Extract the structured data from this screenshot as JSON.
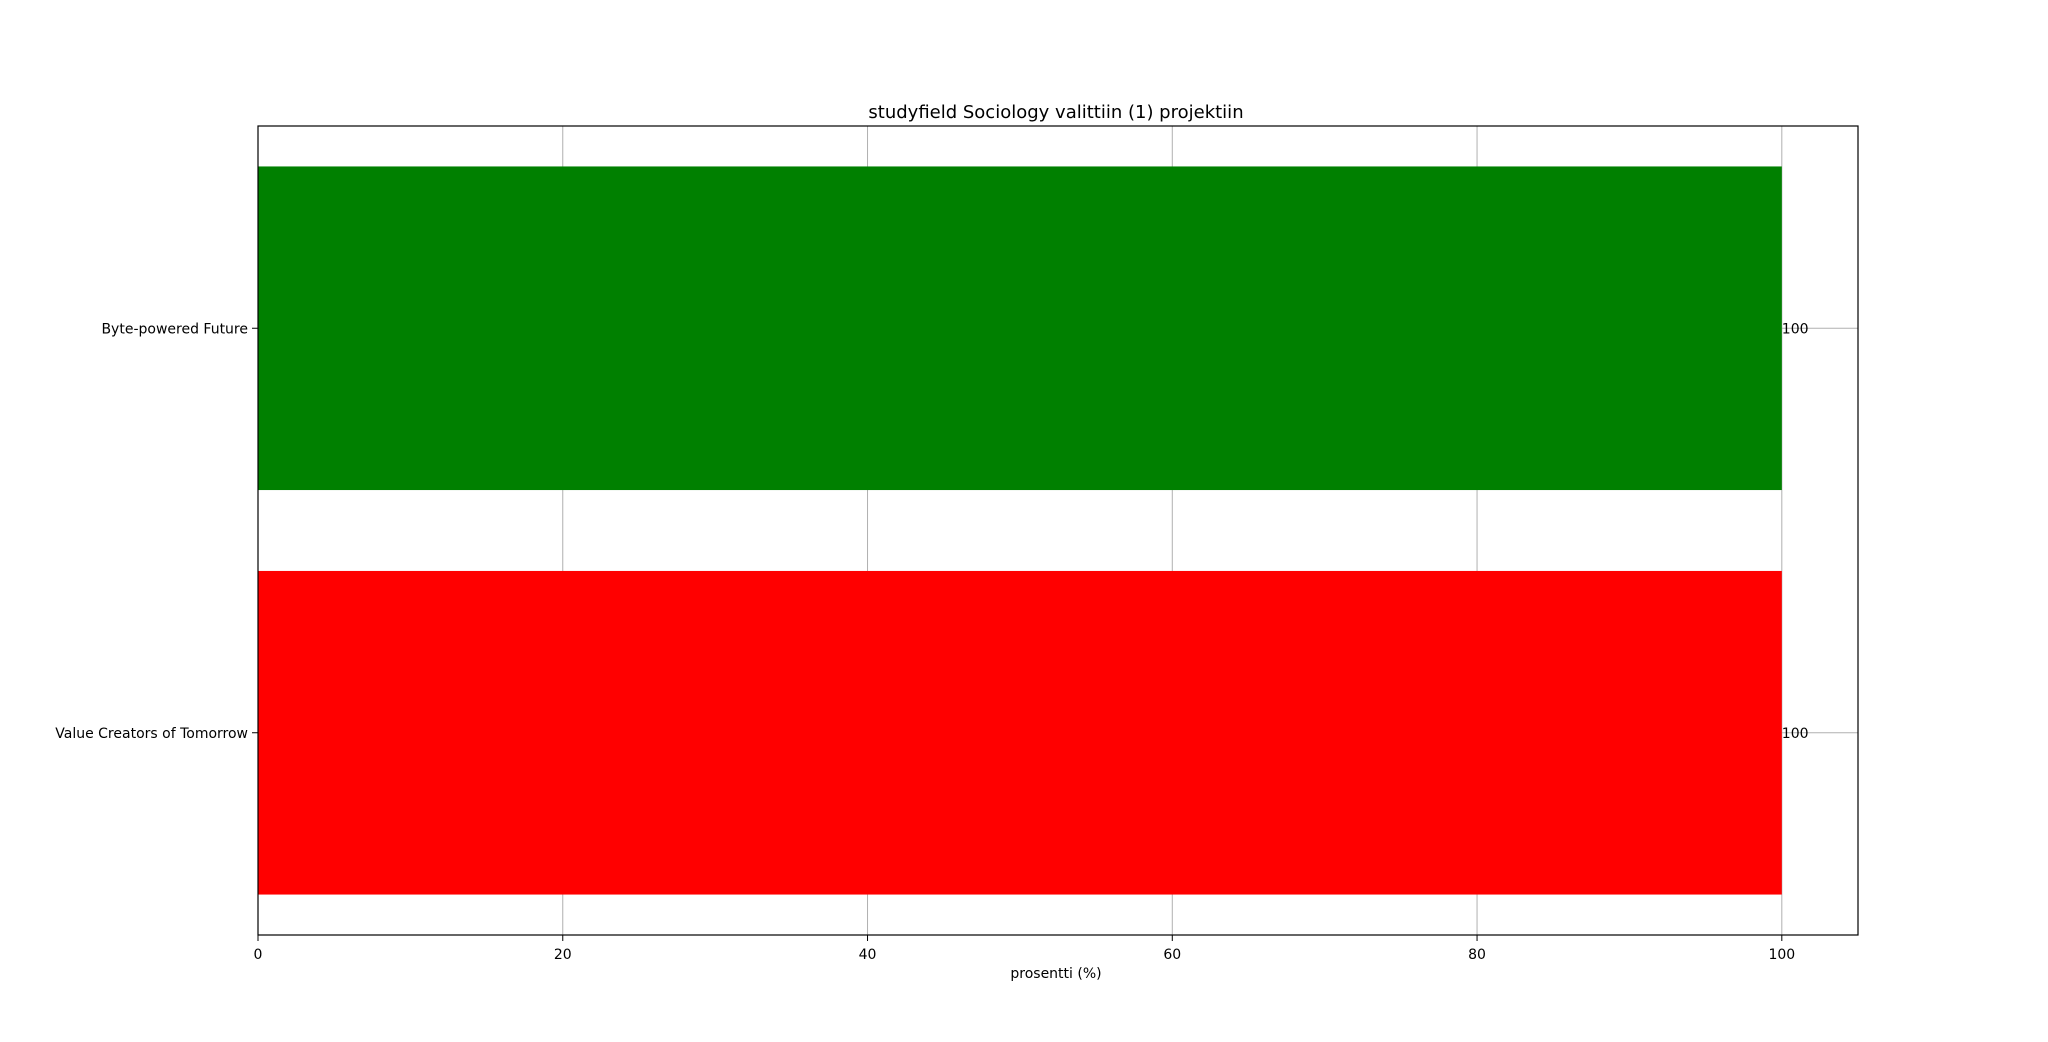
{
  "chart_data": {
    "type": "bar",
    "orientation": "horizontal",
    "title": "studyfield Sociology valittiin (1) projektiin",
    "xlabel": "prosentti (%)",
    "ylabel": "",
    "categories": [
      "Byte-powered Future",
      "Value Creators of Tomorrow"
    ],
    "values": [
      100,
      100
    ],
    "data_labels": [
      "100",
      "100"
    ],
    "colors": [
      "#008000",
      "#ff0000"
    ],
    "xlim": [
      0,
      105
    ],
    "xticks": [
      0,
      20,
      40,
      60,
      80,
      100
    ],
    "xtick_labels": [
      "0",
      "20",
      "40",
      "60",
      "80",
      "100"
    ],
    "grid": true,
    "legend": "none"
  }
}
